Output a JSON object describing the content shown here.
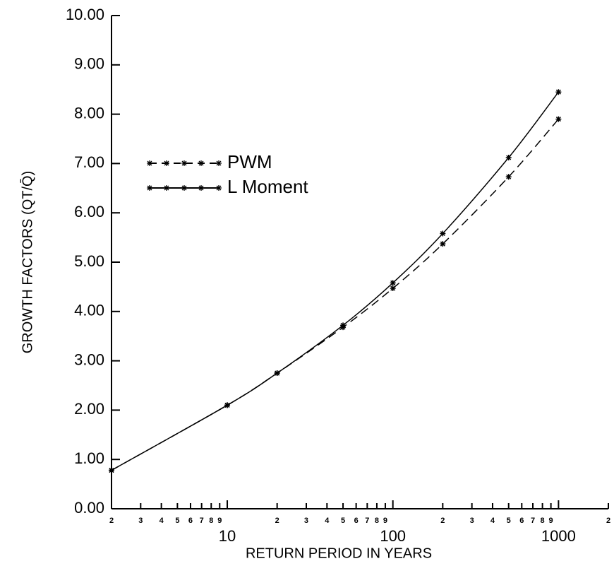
{
  "chart_data": {
    "type": "line",
    "xlabel": "RETURN PERIOD IN YEARS",
    "ylabel": "GROWTH FACTORS (QT/Q̄)",
    "xscale": "log",
    "x": [
      2,
      10,
      20,
      50,
      100,
      200,
      500,
      1000
    ],
    "series": [
      {
        "name": "PWM",
        "color": "#000000",
        "dash": true,
        "values": [
          0.78,
          2.1,
          2.75,
          3.68,
          4.47,
          5.37,
          6.73,
          7.9
        ]
      },
      {
        "name": "L Moment",
        "color": "#000000",
        "dash": false,
        "values": [
          0.78,
          2.1,
          2.75,
          3.72,
          4.58,
          5.58,
          7.12,
          8.45
        ]
      }
    ],
    "xlim": [
      2,
      2000
    ],
    "ylim": [
      0,
      10
    ],
    "xticks": [
      2,
      3,
      4,
      5,
      6,
      7,
      8,
      9,
      10,
      {
        "value": 20,
        "label": "2"
      },
      {
        "value": 30,
        "label": "3"
      },
      {
        "value": 40,
        "label": "4"
      },
      {
        "value": 50,
        "label": "5"
      },
      {
        "value": 60,
        "label": "6"
      },
      {
        "value": 70,
        "label": "7"
      },
      {
        "value": 80,
        "label": "8"
      },
      {
        "value": 90,
        "label": "9"
      },
      100,
      {
        "value": 200,
        "label": "2"
      },
      {
        "value": 300,
        "label": "3"
      },
      {
        "value": 400,
        "label": "4"
      },
      {
        "value": 500,
        "label": "5"
      },
      {
        "value": 600,
        "label": "6"
      },
      {
        "value": 700,
        "label": "7"
      },
      {
        "value": 800,
        "label": "8"
      },
      {
        "value": 900,
        "label": "9"
      },
      1000,
      {
        "value": 2000,
        "label": "2"
      }
    ],
    "yticks": [
      {
        "value": 0,
        "label": "0.00"
      },
      {
        "value": 1,
        "label": "1.00"
      },
      {
        "value": 2,
        "label": "2.00"
      },
      {
        "value": 3,
        "label": "3.00"
      },
      {
        "value": 4,
        "label": "4.00"
      },
      {
        "value": 5,
        "label": "5.00"
      },
      {
        "value": 6,
        "label": "6.00"
      },
      {
        "value": 7,
        "label": "7.00"
      },
      {
        "value": 8,
        "label": "8.00"
      },
      {
        "value": 9,
        "label": "9.00"
      },
      {
        "value": 10,
        "label": "10.00"
      }
    ],
    "legend": "upper left",
    "grid": false
  }
}
